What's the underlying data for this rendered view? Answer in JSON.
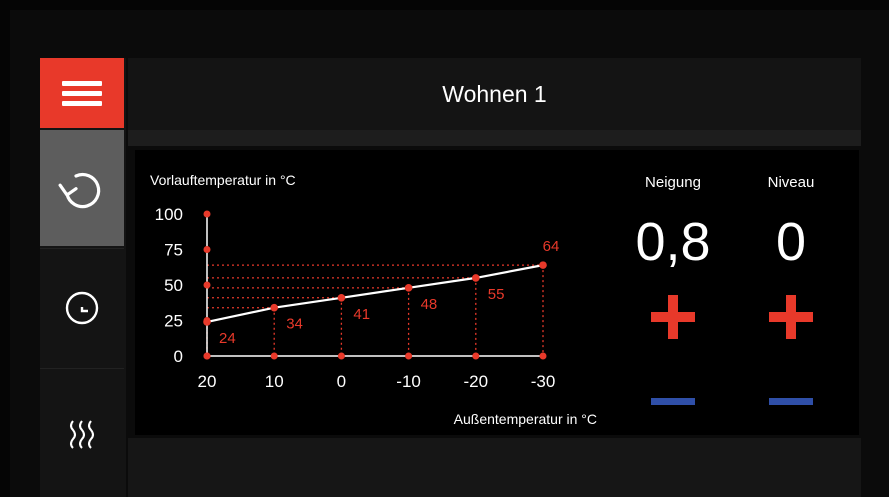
{
  "header": {
    "title": "Wohnen 1"
  },
  "sidebar": {
    "items": [
      {
        "name": "menu",
        "icon": "hamburger-icon"
      },
      {
        "name": "curve",
        "icon": "refresh-icon"
      },
      {
        "name": "timer",
        "icon": "clock-icon"
      },
      {
        "name": "heating",
        "icon": "heat-waves-icon"
      }
    ]
  },
  "controls": {
    "neigung": {
      "label": "Neigung",
      "value": "0,8"
    },
    "niveau": {
      "label": "Niveau",
      "value": "0"
    }
  },
  "colors": {
    "accent": "#e8392a",
    "minus": "#2f4fa8",
    "active_item": "#5d5d5d"
  },
  "chart_data": {
    "type": "line",
    "ylabel": "Vorlauftemperatur in °C",
    "xlabel": "Außentemperatur in °C",
    "x": [
      20,
      10,
      0,
      -10,
      -20,
      -30
    ],
    "y": [
      24,
      34,
      41,
      48,
      55,
      64
    ],
    "point_labels": [
      "24",
      "34",
      "41",
      "48",
      "55",
      "64"
    ],
    "x_ticks": [
      "20",
      "10",
      "0",
      "-10",
      "-20",
      "-30"
    ],
    "y_ticks": [
      "0",
      "25",
      "50",
      "75",
      "100"
    ],
    "xlim": [
      20,
      -30
    ],
    "ylim": [
      0,
      100
    ]
  }
}
